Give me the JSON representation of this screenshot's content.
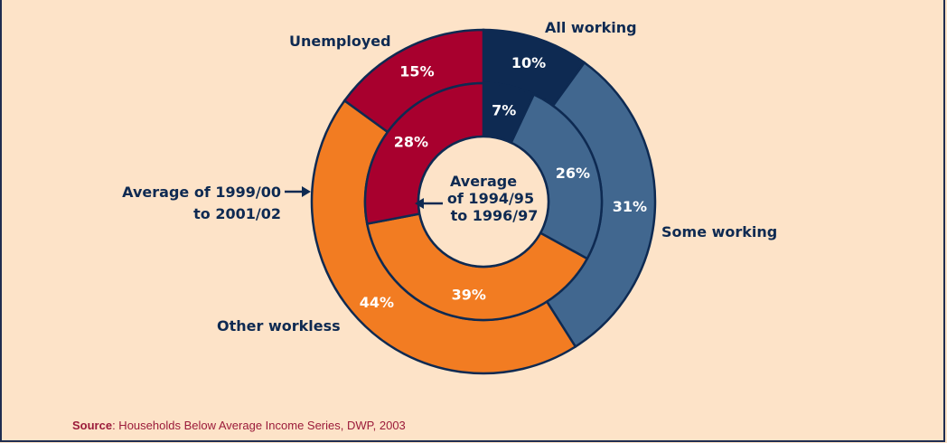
{
  "chart_data": {
    "type": "pie",
    "categories": [
      "All working",
      "Some working",
      "Other workless",
      "Unemployed"
    ],
    "series": [
      {
        "name": "Average of 1999/00 to 2001/02",
        "values": [
          10,
          31,
          44,
          15
        ]
      },
      {
        "name": "Average of 1994/95 to 1996/97",
        "values": [
          7,
          26,
          39,
          28
        ]
      }
    ],
    "value_labels": {
      "outer": [
        "10%",
        "31%",
        "44%",
        "15%"
      ],
      "inner": [
        "7%",
        "26%",
        "39%",
        "28%"
      ]
    },
    "colors": [
      "#0e2a52",
      "#41678f",
      "#f27c22",
      "#a8002e"
    ],
    "category_labels": {
      "all_working": "All working",
      "some_working": "Some working",
      "other_workless": "Other workless",
      "unemployed": "Unemployed"
    },
    "outer_ring_label": [
      "Average of 1999/00",
      "to 2001/02"
    ],
    "inner_ring_label": [
      "Average",
      "of 1994/95",
      "to 1996/97"
    ]
  },
  "source": {
    "label": "Source",
    "text": ": Households Below Average Income Series, DWP, 2003"
  }
}
